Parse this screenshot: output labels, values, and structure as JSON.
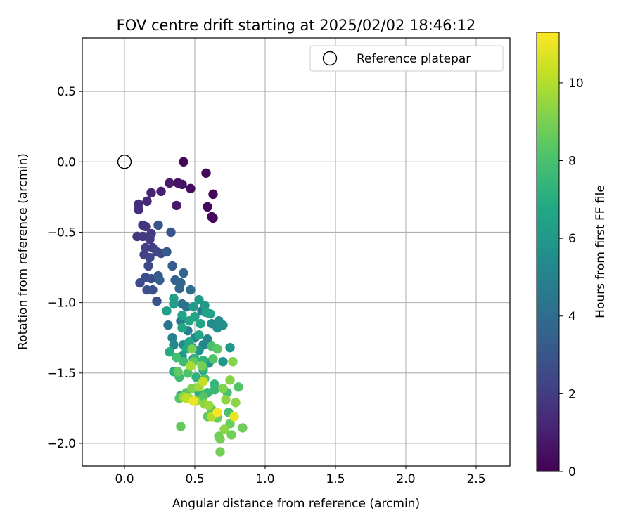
{
  "chart_data": {
    "type": "scatter",
    "title": "FOV centre drift starting at 2025/02/02 18:46:12",
    "xlabel": "Angular distance from reference (arcmin)",
    "ylabel": "Rotation from reference (arcmin)",
    "xlim": [
      -0.3,
      2.74
    ],
    "ylim": [
      -2.16,
      0.88
    ],
    "xticks": [
      0.0,
      0.5,
      1.0,
      1.5,
      2.0,
      2.5
    ],
    "xtick_labels": [
      "0.0",
      "0.5",
      "1.0",
      "1.5",
      "2.0",
      "2.5"
    ],
    "yticks": [
      0.5,
      0.0,
      -0.5,
      -1.0,
      -1.5,
      -2.0
    ],
    "ytick_labels": [
      "0.5",
      "0.0",
      "−0.5",
      "−1.0",
      "−1.5",
      "−2.0"
    ],
    "grid": true,
    "legend": {
      "position": "top-right",
      "entries": [
        {
          "label": "Reference platepar",
          "marker": "open-circle"
        }
      ]
    },
    "reference_point": {
      "x": 0.0,
      "y": 0.0
    },
    "colorbar": {
      "label": "Hours from first FF file",
      "colormap": "viridis",
      "range": [
        0,
        11.3
      ],
      "ticks": [
        0,
        2,
        4,
        6,
        8,
        10
      ],
      "tick_labels": [
        "0",
        "2",
        "4",
        "6",
        "8",
        "10"
      ]
    },
    "series": [
      {
        "color_by": "hours",
        "points": [
          {
            "x": 0.42,
            "y": 0.0,
            "c": 0.1
          },
          {
            "x": 0.58,
            "y": -0.08,
            "c": 0.2
          },
          {
            "x": 0.63,
            "y": -0.23,
            "c": 0.2
          },
          {
            "x": 0.59,
            "y": -0.32,
            "c": 0.2
          },
          {
            "x": 0.62,
            "y": -0.39,
            "c": 0.2
          },
          {
            "x": 0.63,
            "y": -0.4,
            "c": 0.2
          },
          {
            "x": 0.47,
            "y": -0.19,
            "c": 0.4
          },
          {
            "x": 0.38,
            "y": -0.15,
            "c": 0.5
          },
          {
            "x": 0.41,
            "y": -0.16,
            "c": 0.6
          },
          {
            "x": 0.32,
            "y": -0.15,
            "c": 0.8
          },
          {
            "x": 0.37,
            "y": -0.31,
            "c": 0.8
          },
          {
            "x": 0.26,
            "y": -0.21,
            "c": 1.0
          },
          {
            "x": 0.19,
            "y": -0.22,
            "c": 1.1
          },
          {
            "x": 0.16,
            "y": -0.28,
            "c": 1.3
          },
          {
            "x": 0.1,
            "y": -0.3,
            "c": 1.4
          },
          {
            "x": 0.1,
            "y": -0.34,
            "c": 1.5
          },
          {
            "x": 0.13,
            "y": -0.45,
            "c": 1.7
          },
          {
            "x": 0.15,
            "y": -0.46,
            "c": 1.8
          },
          {
            "x": 0.09,
            "y": -0.53,
            "c": 1.8
          },
          {
            "x": 0.13,
            "y": -0.53,
            "c": 1.9
          },
          {
            "x": 0.19,
            "y": -0.51,
            "c": 1.9
          },
          {
            "x": 0.18,
            "y": -0.55,
            "c": 2.0
          },
          {
            "x": 0.15,
            "y": -0.61,
            "c": 2.1
          },
          {
            "x": 0.2,
            "y": -0.61,
            "c": 2.1
          },
          {
            "x": 0.14,
            "y": -0.66,
            "c": 2.2
          },
          {
            "x": 0.18,
            "y": -0.68,
            "c": 2.3
          },
          {
            "x": 0.23,
            "y": -0.64,
            "c": 2.3
          },
          {
            "x": 0.26,
            "y": -0.65,
            "c": 2.4
          },
          {
            "x": 0.17,
            "y": -0.74,
            "c": 2.5
          },
          {
            "x": 0.15,
            "y": -0.82,
            "c": 2.6
          },
          {
            "x": 0.11,
            "y": -0.86,
            "c": 2.6
          },
          {
            "x": 0.19,
            "y": -0.83,
            "c": 2.7
          },
          {
            "x": 0.16,
            "y": -0.91,
            "c": 2.8
          },
          {
            "x": 0.2,
            "y": -0.91,
            "c": 2.8
          },
          {
            "x": 0.23,
            "y": -0.99,
            "c": 2.9
          },
          {
            "x": 0.33,
            "y": -0.5,
            "c": 3.0
          },
          {
            "x": 0.24,
            "y": -0.45,
            "c": 3.0
          },
          {
            "x": 0.3,
            "y": -0.64,
            "c": 3.2
          },
          {
            "x": 0.34,
            "y": -0.74,
            "c": 3.3
          },
          {
            "x": 0.24,
            "y": -0.81,
            "c": 3.3
          },
          {
            "x": 0.25,
            "y": -0.84,
            "c": 3.4
          },
          {
            "x": 0.36,
            "y": -0.84,
            "c": 3.5
          },
          {
            "x": 0.42,
            "y": -0.79,
            "c": 3.6
          },
          {
            "x": 0.4,
            "y": -0.86,
            "c": 3.7
          },
          {
            "x": 0.39,
            "y": -0.9,
            "c": 3.8
          },
          {
            "x": 0.47,
            "y": -0.91,
            "c": 4.0
          },
          {
            "x": 0.41,
            "y": -1.01,
            "c": 4.2
          },
          {
            "x": 0.44,
            "y": -1.03,
            "c": 4.3
          },
          {
            "x": 0.31,
            "y": -1.16,
            "c": 4.5
          },
          {
            "x": 0.4,
            "y": -1.13,
            "c": 4.6
          },
          {
            "x": 0.55,
            "y": -1.06,
            "c": 4.7
          },
          {
            "x": 0.45,
            "y": -1.2,
            "c": 4.8
          },
          {
            "x": 0.34,
            "y": -1.25,
            "c": 4.9
          },
          {
            "x": 0.5,
            "y": -1.25,
            "c": 5.0
          },
          {
            "x": 0.56,
            "y": -1.3,
            "c": 5.1
          },
          {
            "x": 0.59,
            "y": -1.26,
            "c": 5.2
          },
          {
            "x": 0.35,
            "y": -1.3,
            "c": 5.3
          },
          {
            "x": 0.42,
            "y": -1.3,
            "c": 5.3
          },
          {
            "x": 0.62,
            "y": -1.15,
            "c": 5.4
          },
          {
            "x": 0.66,
            "y": -1.18,
            "c": 5.5
          },
          {
            "x": 0.67,
            "y": -1.13,
            "c": 5.5
          },
          {
            "x": 0.7,
            "y": -1.16,
            "c": 5.6
          },
          {
            "x": 0.48,
            "y": -1.32,
            "c": 5.6
          },
          {
            "x": 0.53,
            "y": -1.34,
            "c": 5.7
          },
          {
            "x": 0.41,
            "y": -1.38,
            "c": 5.7
          },
          {
            "x": 0.49,
            "y": -1.4,
            "c": 5.8
          },
          {
            "x": 0.6,
            "y": -1.43,
            "c": 5.9
          },
          {
            "x": 0.7,
            "y": -1.42,
            "c": 5.9
          },
          {
            "x": 0.75,
            "y": -1.32,
            "c": 6.0
          },
          {
            "x": 0.53,
            "y": -0.98,
            "c": 6.1
          },
          {
            "x": 0.57,
            "y": -1.02,
            "c": 6.1
          },
          {
            "x": 0.49,
            "y": -1.03,
            "c": 6.2
          },
          {
            "x": 0.35,
            "y": -0.97,
            "c": 6.3
          },
          {
            "x": 0.35,
            "y": -1.01,
            "c": 6.3
          },
          {
            "x": 0.3,
            "y": -1.06,
            "c": 6.4
          },
          {
            "x": 0.58,
            "y": -1.07,
            "c": 6.4
          },
          {
            "x": 0.5,
            "y": -1.1,
            "c": 6.5
          },
          {
            "x": 0.61,
            "y": -1.08,
            "c": 6.5
          },
          {
            "x": 0.41,
            "y": -1.09,
            "c": 6.5
          },
          {
            "x": 0.46,
            "y": -1.13,
            "c": 6.6
          },
          {
            "x": 0.54,
            "y": -1.15,
            "c": 6.6
          },
          {
            "x": 0.41,
            "y": -1.18,
            "c": 6.7
          },
          {
            "x": 0.53,
            "y": -1.23,
            "c": 6.7
          },
          {
            "x": 0.46,
            "y": -1.28,
            "c": 6.8
          },
          {
            "x": 0.44,
            "y": -1.33,
            "c": 6.8
          },
          {
            "x": 0.32,
            "y": -1.35,
            "c": 6.9
          },
          {
            "x": 0.56,
            "y": -1.48,
            "c": 6.9
          },
          {
            "x": 0.35,
            "y": -1.49,
            "c": 7.0
          },
          {
            "x": 0.4,
            "y": -1.66,
            "c": 7.0
          },
          {
            "x": 0.53,
            "y": -1.64,
            "c": 7.1
          },
          {
            "x": 0.56,
            "y": -1.66,
            "c": 7.2
          },
          {
            "x": 0.51,
            "y": -1.53,
            "c": 7.2
          },
          {
            "x": 0.5,
            "y": -1.4,
            "c": 7.3
          },
          {
            "x": 0.56,
            "y": -1.41,
            "c": 7.3
          },
          {
            "x": 0.64,
            "y": -1.58,
            "c": 7.4
          },
          {
            "x": 0.59,
            "y": -1.64,
            "c": 7.5
          },
          {
            "x": 0.64,
            "y": -1.62,
            "c": 7.5
          },
          {
            "x": 0.56,
            "y": -1.46,
            "c": 7.6
          },
          {
            "x": 0.42,
            "y": -1.42,
            "c": 7.7
          },
          {
            "x": 0.39,
            "y": -1.53,
            "c": 7.8
          },
          {
            "x": 0.37,
            "y": -1.39,
            "c": 7.9
          },
          {
            "x": 0.62,
            "y": -1.31,
            "c": 8.0
          },
          {
            "x": 0.73,
            "y": -1.64,
            "c": 8.0
          },
          {
            "x": 0.74,
            "y": -1.78,
            "c": 8.0
          },
          {
            "x": 0.45,
            "y": -1.5,
            "c": 8.1
          },
          {
            "x": 0.57,
            "y": -1.54,
            "c": 8.1
          },
          {
            "x": 0.63,
            "y": -1.4,
            "c": 8.2
          },
          {
            "x": 0.81,
            "y": -1.6,
            "c": 8.2
          },
          {
            "x": 0.39,
            "y": -1.68,
            "c": 8.3
          },
          {
            "x": 0.44,
            "y": -1.64,
            "c": 8.3
          },
          {
            "x": 0.56,
            "y": -1.67,
            "c": 8.3
          },
          {
            "x": 0.62,
            "y": -1.76,
            "c": 8.4
          },
          {
            "x": 0.66,
            "y": -1.33,
            "c": 8.4
          },
          {
            "x": 0.49,
            "y": -1.42,
            "c": 8.5
          },
          {
            "x": 0.38,
            "y": -1.49,
            "c": 8.5
          },
          {
            "x": 0.4,
            "y": -1.88,
            "c": 8.6
          },
          {
            "x": 0.59,
            "y": -1.81,
            "c": 8.6
          },
          {
            "x": 0.66,
            "y": -1.82,
            "c": 8.7
          },
          {
            "x": 0.75,
            "y": -1.86,
            "c": 8.7
          },
          {
            "x": 0.76,
            "y": -1.94,
            "c": 8.8
          },
          {
            "x": 0.84,
            "y": -1.89,
            "c": 8.8
          },
          {
            "x": 0.67,
            "y": -1.95,
            "c": 8.8
          },
          {
            "x": 0.68,
            "y": -1.97,
            "c": 8.9
          },
          {
            "x": 0.68,
            "y": -2.06,
            "c": 8.9
          },
          {
            "x": 0.48,
            "y": -1.33,
            "c": 9.0
          },
          {
            "x": 0.55,
            "y": -1.45,
            "c": 9.0
          },
          {
            "x": 0.48,
            "y": -1.61,
            "c": 9.1
          },
          {
            "x": 0.7,
            "y": -1.61,
            "c": 9.1
          },
          {
            "x": 0.75,
            "y": -1.55,
            "c": 9.2
          },
          {
            "x": 0.77,
            "y": -1.42,
            "c": 9.2
          },
          {
            "x": 0.79,
            "y": -1.71,
            "c": 9.3
          },
          {
            "x": 0.71,
            "y": -1.9,
            "c": 9.3
          },
          {
            "x": 0.72,
            "y": -1.69,
            "c": 9.4
          },
          {
            "x": 0.57,
            "y": -1.72,
            "c": 9.4
          },
          {
            "x": 0.42,
            "y": -1.67,
            "c": 9.5
          },
          {
            "x": 0.46,
            "y": -1.68,
            "c": 9.5
          },
          {
            "x": 0.51,
            "y": -1.7,
            "c": 9.6
          },
          {
            "x": 0.6,
            "y": -1.73,
            "c": 9.6
          },
          {
            "x": 0.53,
            "y": -1.6,
            "c": 9.7
          },
          {
            "x": 0.47,
            "y": -1.45,
            "c": 9.8
          },
          {
            "x": 0.62,
            "y": -1.81,
            "c": 10.0
          },
          {
            "x": 0.44,
            "y": -1.68,
            "c": 10.2
          },
          {
            "x": 0.56,
            "y": -1.56,
            "c": 10.3
          },
          {
            "x": 0.78,
            "y": -1.81,
            "c": 10.9
          },
          {
            "x": 0.49,
            "y": -1.7,
            "c": 11.0
          },
          {
            "x": 0.66,
            "y": -1.78,
            "c": 11.2
          }
        ]
      }
    ]
  }
}
